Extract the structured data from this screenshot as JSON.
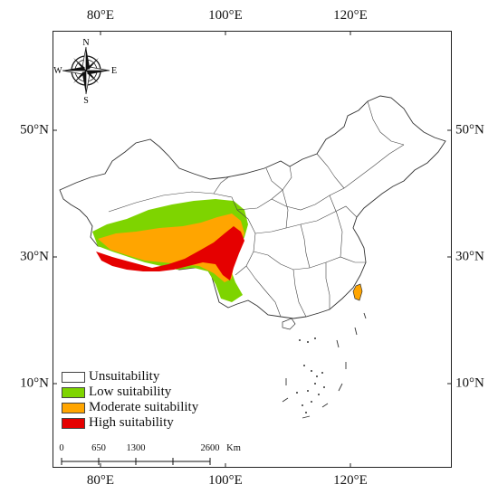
{
  "axes": {
    "top": [
      "80°E",
      "100°E",
      "120°E"
    ],
    "bottom": [
      "80°E",
      "100°E",
      "120°E"
    ],
    "left": [
      "50°N",
      "30°N",
      "10°N"
    ],
    "right": [
      "50°N",
      "30°N",
      "10°N"
    ]
  },
  "compass": {
    "n": "N",
    "s": "S",
    "e": "E",
    "w": "W"
  },
  "legend": [
    {
      "label": "Unsuitability",
      "color": "#ffffff"
    },
    {
      "label": "Low suitability",
      "color": "#7ed400"
    },
    {
      "label": "Moderate suitability",
      "color": "#ffa500"
    },
    {
      "label": "High suitability",
      "color": "#e50000"
    }
  ],
  "scale_bar": {
    "ticks": [
      "0",
      "650",
      "1300",
      "2600"
    ],
    "unit": "Km"
  }
}
